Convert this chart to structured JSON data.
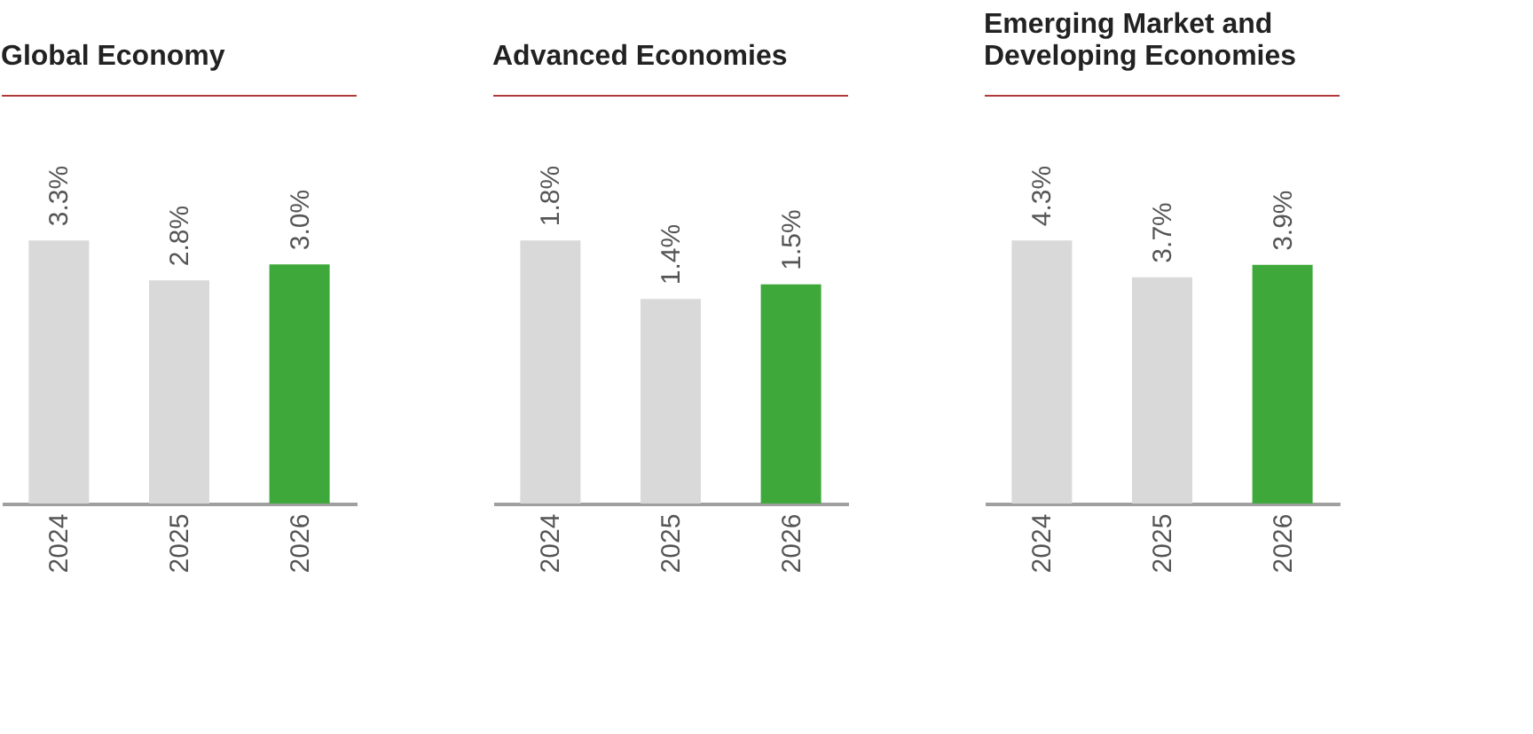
{
  "chart_data": [
    {
      "type": "bar",
      "title": "Global Economy",
      "categories": [
        "2024",
        "2025",
        "2026"
      ],
      "values": [
        3.3,
        2.8,
        3.0
      ],
      "colors": [
        "#d9d9d9",
        "#d9d9d9",
        "#3ea83a"
      ],
      "value_labels": [
        "3.3%",
        "2.8%",
        "3.0%"
      ],
      "tick_labels": "x",
      "grid": false
    },
    {
      "type": "bar",
      "title": "Advanced Economies",
      "categories": [
        "2024",
        "2025",
        "2026"
      ],
      "values": [
        1.8,
        1.4,
        1.5
      ],
      "colors": [
        "#d9d9d9",
        "#d9d9d9",
        "#3ea83a"
      ],
      "value_labels": [
        "1.8%",
        "1.4%",
        "1.5%"
      ],
      "tick_labels": "x",
      "grid": false
    },
    {
      "type": "bar",
      "title": "Emerging Market and Developing Economies",
      "categories": [
        "2024",
        "2025",
        "2026"
      ],
      "values": [
        4.3,
        3.7,
        3.9
      ],
      "colors": [
        "#d9d9d9",
        "#d9d9d9",
        "#3ea83a"
      ],
      "value_labels": [
        "4.3%",
        "3.7%",
        "3.9%"
      ],
      "tick_labels": "x",
      "grid": false
    }
  ]
}
